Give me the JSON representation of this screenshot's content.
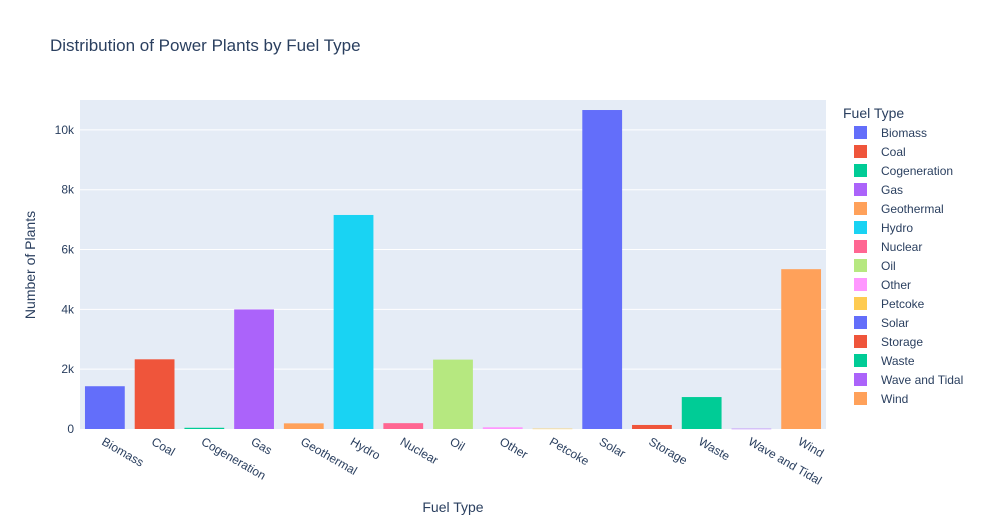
{
  "chart_data": {
    "type": "bar",
    "title": "Distribution of Power Plants by Fuel Type",
    "xlabel": "Fuel Type",
    "ylabel": "Number of Plants",
    "ylim": [
      0,
      11000
    ],
    "y_ticks": [
      0,
      2000,
      4000,
      6000,
      8000,
      10000
    ],
    "y_tick_labels": [
      "0",
      "2k",
      "4k",
      "6k",
      "8k",
      "10k"
    ],
    "grid": true,
    "legend_title": "Fuel Type",
    "legend_position": "right",
    "categories": [
      "Biomass",
      "Coal",
      "Cogeneration",
      "Gas",
      "Geothermal",
      "Hydro",
      "Nuclear",
      "Oil",
      "Other",
      "Petcoke",
      "Solar",
      "Storage",
      "Waste",
      "Wave and Tidal",
      "Wind"
    ],
    "values": [
      1430,
      2330,
      41,
      3998,
      189,
      7156,
      195,
      2320,
      58,
      12,
      10665,
      135,
      1068,
      10,
      5344
    ],
    "colors": [
      "#636efa",
      "#EF553B",
      "#00cc96",
      "#ab63fa",
      "#FFA15A",
      "#19d3f3",
      "#FF6692",
      "#B6E880",
      "#FF97FF",
      "#FECB52",
      "#636efa",
      "#EF553B",
      "#00cc96",
      "#ab63fa",
      "#FFA15A"
    ],
    "plot_background": "#E5ECF6"
  }
}
